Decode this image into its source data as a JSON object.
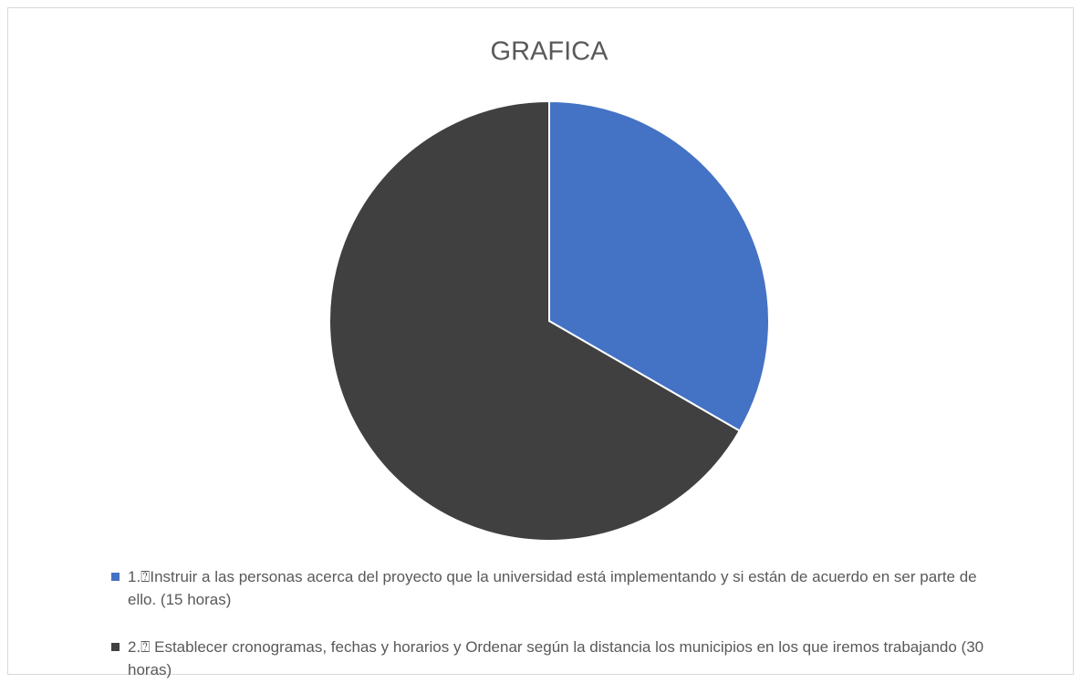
{
  "chart_data": {
    "type": "pie",
    "title": "GRAFICA",
    "categories": [
      "1.⍰Instruir a las personas acerca del proyecto que la universidad está implementando y si están de acuerdo en ser parte de ello. (15 horas)",
      "2.⍰ Establecer cronogramas, fechas y horarios y Ordenar según la distancia los municipios en los que iremos trabajando (30 horas)"
    ],
    "values": [
      15,
      30
    ],
    "colors": [
      "#4472c4",
      "#404040"
    ],
    "legend": "bottom"
  }
}
